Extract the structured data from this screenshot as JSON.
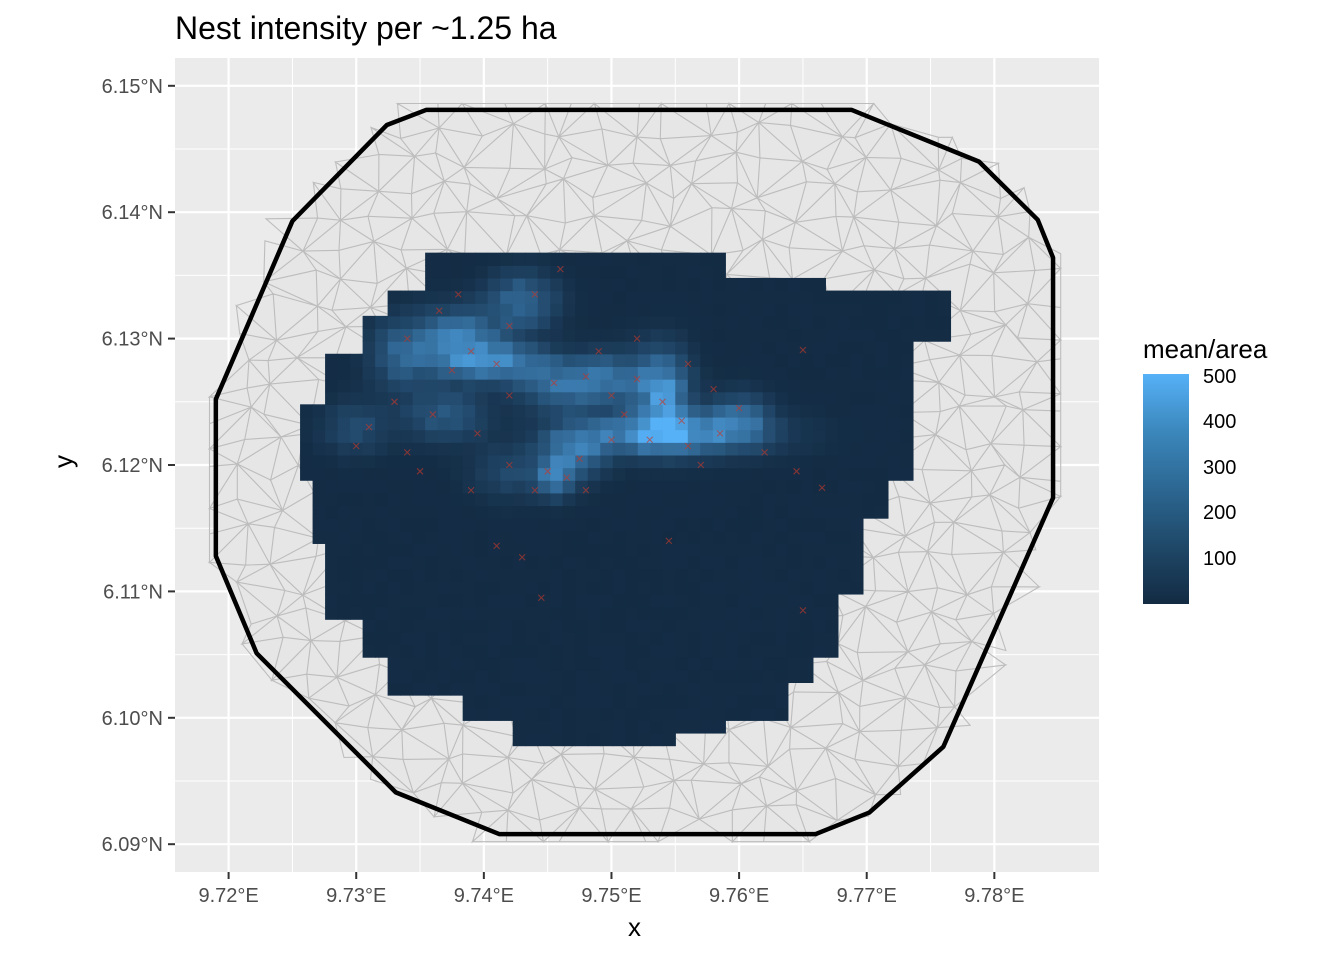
{
  "title": "Nest intensity per ~1.25 ha",
  "chart_data": {
    "type": "heatmap",
    "title": "Nest intensity per ~1.25 ha",
    "xlabel": "x",
    "ylabel": "y",
    "xlim": [
      9.7158,
      9.7882
    ],
    "ylim": [
      6.0878,
      6.1522
    ],
    "x_ticks": [
      {
        "value": 9.72,
        "label": "9.72°E"
      },
      {
        "value": 9.73,
        "label": "9.73°E"
      },
      {
        "value": 9.74,
        "label": "9.74°E"
      },
      {
        "value": 9.75,
        "label": "9.75°E"
      },
      {
        "value": 9.76,
        "label": "9.76°E"
      },
      {
        "value": 9.77,
        "label": "9.77°E"
      },
      {
        "value": 9.78,
        "label": "9.78°E"
      }
    ],
    "y_ticks": [
      {
        "value": 6.09,
        "label": "6.09°N"
      },
      {
        "value": 6.1,
        "label": "6.10°N"
      },
      {
        "value": 6.11,
        "label": "6.11°N"
      },
      {
        "value": 6.12,
        "label": "6.12°N"
      },
      {
        "value": 6.13,
        "label": "6.13°N"
      },
      {
        "value": 6.14,
        "label": "6.14°N"
      },
      {
        "value": 6.15,
        "label": "6.15°N"
      }
    ],
    "boundary_polygon": [
      [
        9.7355,
        6.1481
      ],
      [
        9.7688,
        6.1481
      ],
      [
        9.7788,
        6.144
      ],
      [
        9.7834,
        6.1394
      ],
      [
        9.7846,
        6.1364
      ],
      [
        9.7846,
        6.1174
      ],
      [
        9.776,
        6.0977
      ],
      [
        9.7702,
        6.0925
      ],
      [
        9.766,
        6.0908
      ],
      [
        9.7412,
        6.0908
      ],
      [
        9.7331,
        6.0941
      ],
      [
        9.7222,
        6.1051
      ],
      [
        9.719,
        6.1128
      ],
      [
        9.719,
        6.1252
      ],
      [
        9.725,
        6.1393
      ],
      [
        9.7324,
        6.1469
      ]
    ],
    "intensity_region": [
      [
        9.7371,
        6.1367
      ],
      [
        9.759,
        6.1367
      ],
      [
        9.759,
        6.1347
      ],
      [
        9.7664,
        6.1347
      ],
      [
        9.7676,
        6.1337
      ],
      [
        9.7766,
        6.1337
      ],
      [
        9.7766,
        6.1301
      ],
      [
        9.7738,
        6.1301
      ],
      [
        9.7738,
        6.119
      ],
      [
        9.7717,
        6.119
      ],
      [
        9.7717,
        6.1156
      ],
      [
        9.7698,
        6.1156
      ],
      [
        9.7698,
        6.1101
      ],
      [
        9.7681,
        6.1101
      ],
      [
        9.7681,
        6.1053
      ],
      [
        9.7659,
        6.1053
      ],
      [
        9.7659,
        6.1026
      ],
      [
        9.7637,
        6.1026
      ],
      [
        9.7637,
        6.1
      ],
      [
        9.7592,
        6.1
      ],
      [
        9.7592,
        6.0987
      ],
      [
        9.7555,
        6.0987
      ],
      [
        9.7554,
        6.0977
      ],
      [
        9.7418,
        6.0977
      ],
      [
        9.7418,
        6.0998
      ],
      [
        9.7385,
        6.0998
      ],
      [
        9.7385,
        6.1023
      ],
      [
        9.7327,
        6.1023
      ],
      [
        9.7327,
        6.1048
      ],
      [
        9.7305,
        6.1048
      ],
      [
        9.7305,
        6.1077
      ],
      [
        9.7276,
        6.1077
      ],
      [
        9.7276,
        6.1135
      ],
      [
        9.7264,
        6.1135
      ],
      [
        9.7264,
        6.1189
      ],
      [
        9.7257,
        6.1189
      ],
      [
        9.7257,
        6.1246
      ],
      [
        9.7277,
        6.1246
      ],
      [
        9.7277,
        6.1288
      ],
      [
        9.7303,
        6.1288
      ],
      [
        9.7303,
        6.1321
      ],
      [
        9.7327,
        6.1321
      ],
      [
        9.7327,
        6.1343
      ],
      [
        9.7356,
        6.1343
      ],
      [
        9.7356,
        6.1367
      ]
    ],
    "hotspots": [
      {
        "x": 9.7335,
        "y": 6.1288,
        "rx": 0.0016,
        "ry": 0.0018,
        "value": 200
      },
      {
        "x": 9.738,
        "y": 6.13,
        "rx": 0.0022,
        "ry": 0.0016,
        "value": 300
      },
      {
        "x": 9.743,
        "y": 6.133,
        "rx": 0.0018,
        "ry": 0.0015,
        "value": 230
      },
      {
        "x": 9.741,
        "y": 6.1282,
        "rx": 0.003,
        "ry": 0.001,
        "value": 310
      },
      {
        "x": 9.746,
        "y": 6.1262,
        "rx": 0.0022,
        "ry": 0.0012,
        "value": 250
      },
      {
        "x": 9.75,
        "y": 6.127,
        "rx": 0.002,
        "ry": 0.0014,
        "value": 220
      },
      {
        "x": 9.754,
        "y": 6.1258,
        "rx": 0.0014,
        "ry": 0.0022,
        "value": 380
      },
      {
        "x": 9.7545,
        "y": 6.1225,
        "rx": 0.0048,
        "ry": 0.0011,
        "value": 420
      },
      {
        "x": 9.747,
        "y": 6.121,
        "rx": 0.0016,
        "ry": 0.0014,
        "value": 260
      },
      {
        "x": 9.7455,
        "y": 6.119,
        "rx": 0.001,
        "ry": 0.001,
        "value": 280
      },
      {
        "x": 9.737,
        "y": 6.124,
        "rx": 0.0022,
        "ry": 0.0014,
        "value": 170
      },
      {
        "x": 9.73,
        "y": 6.123,
        "rx": 0.0018,
        "ry": 0.0014,
        "value": 120
      },
      {
        "x": 9.742,
        "y": 6.1195,
        "rx": 0.002,
        "ry": 0.0014,
        "value": 110
      },
      {
        "x": 9.76,
        "y": 6.124,
        "rx": 0.0016,
        "ry": 0.0012,
        "value": 200
      }
    ],
    "nests": [
      [
        9.734,
        6.13
      ],
      [
        9.7365,
        6.1322
      ],
      [
        9.739,
        6.129
      ],
      [
        9.7375,
        6.1275
      ],
      [
        9.742,
        6.131
      ],
      [
        9.744,
        6.1335
      ],
      [
        9.741,
        6.128
      ],
      [
        9.7455,
        6.1265
      ],
      [
        9.748,
        6.127
      ],
      [
        9.75,
        6.1255
      ],
      [
        9.752,
        6.1268
      ],
      [
        9.754,
        6.125
      ],
      [
        9.7555,
        6.1235
      ],
      [
        9.753,
        6.122
      ],
      [
        9.756,
        6.1215
      ],
      [
        9.7585,
        6.1225
      ],
      [
        9.75,
        6.122
      ],
      [
        9.7475,
        6.1205
      ],
      [
        9.7465,
        6.119
      ],
      [
        9.745,
        6.1195
      ],
      [
        9.742,
        6.12
      ],
      [
        9.7395,
        6.1225
      ],
      [
        9.736,
        6.124
      ],
      [
        9.733,
        6.125
      ],
      [
        9.731,
        6.123
      ],
      [
        9.73,
        6.1215
      ],
      [
        9.735,
        6.1195
      ],
      [
        9.744,
        6.118
      ],
      [
        9.748,
        6.118
      ],
      [
        9.751,
        6.124
      ],
      [
        9.76,
        6.1245
      ],
      [
        9.762,
        6.121
      ],
      [
        9.7645,
        6.1195
      ],
      [
        9.7665,
        6.1182
      ],
      [
        9.765,
        6.1291
      ],
      [
        9.741,
        6.1136
      ],
      [
        9.743,
        6.1127
      ],
      [
        9.7445,
        6.1095
      ],
      [
        9.7545,
        6.114
      ],
      [
        9.765,
        6.1085
      ],
      [
        9.746,
        6.1355
      ],
      [
        9.738,
        6.1335
      ],
      [
        9.742,
        6.1255
      ],
      [
        9.756,
        6.128
      ],
      [
        9.758,
        6.126
      ],
      [
        9.752,
        6.13
      ],
      [
        9.734,
        6.121
      ],
      [
        9.739,
        6.118
      ],
      [
        9.757,
        6.12
      ],
      [
        9.749,
        6.129
      ]
    ],
    "color_scale": {
      "name": "mean/area",
      "low": "#132B43",
      "high": "#56B1F7",
      "min": 0,
      "max": 510,
      "breaks": [
        100,
        200,
        300,
        400,
        500
      ]
    },
    "grid": true,
    "legend_position": "right"
  },
  "colors": {
    "panel_background": "#EBEBEB",
    "gridline": "#FFFFFF",
    "mesh_line": "#BDBDBD",
    "mesh_fill": "#E6E6E6",
    "boundary": "#000000",
    "nest_marker": "#C0392B"
  }
}
